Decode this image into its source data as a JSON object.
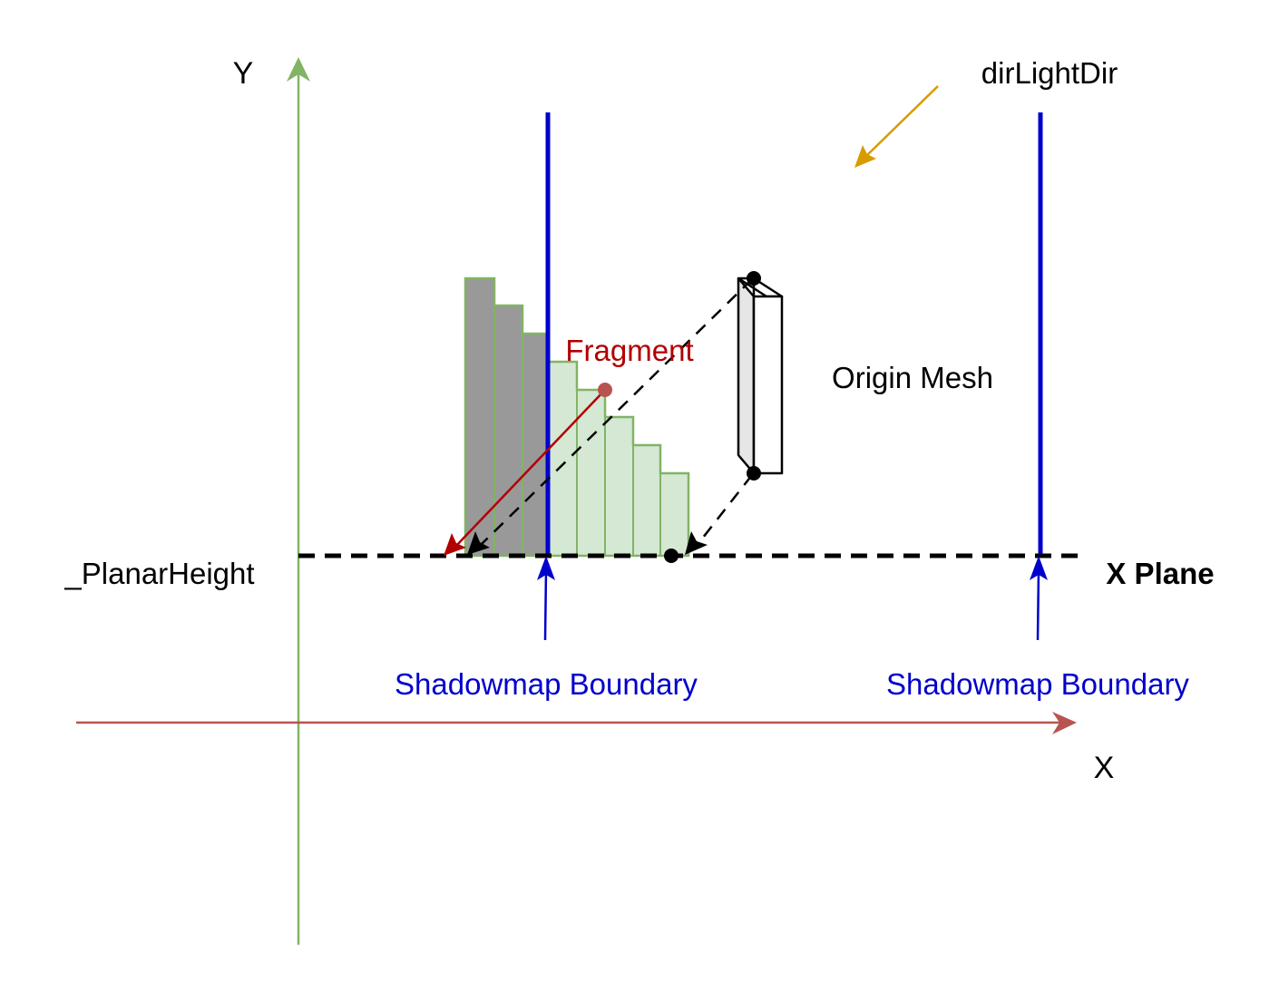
{
  "labels": {
    "y_axis": "Y",
    "x_axis": "X",
    "light_dir": "dirLightDir",
    "origin_mesh": "Origin Mesh",
    "fragment": "Fragment",
    "planar_height": "_PlanarHeight",
    "x_plane": "X Plane",
    "boundary_left": "Shadowmap Boundary",
    "boundary_right": "Shadowmap Boundary"
  },
  "colors": {
    "y_axis": "#82b366",
    "x_axis": "#b85450",
    "boundary": "#0000cc",
    "boundary_text": "#0000cc",
    "light": "#d79b00",
    "fragment": "#b20000",
    "fragment_dot": "#b85450",
    "shadow_gray": "#999999",
    "shadow_green_fill": "#d5e8d4",
    "shadow_green_stroke": "#82b366",
    "mesh_front": "#ffffff",
    "mesh_side": "#e6e6e6"
  },
  "icons": {
    "arrowhead": "filled-triangle-arrowhead",
    "point": "filled-circle-point"
  }
}
